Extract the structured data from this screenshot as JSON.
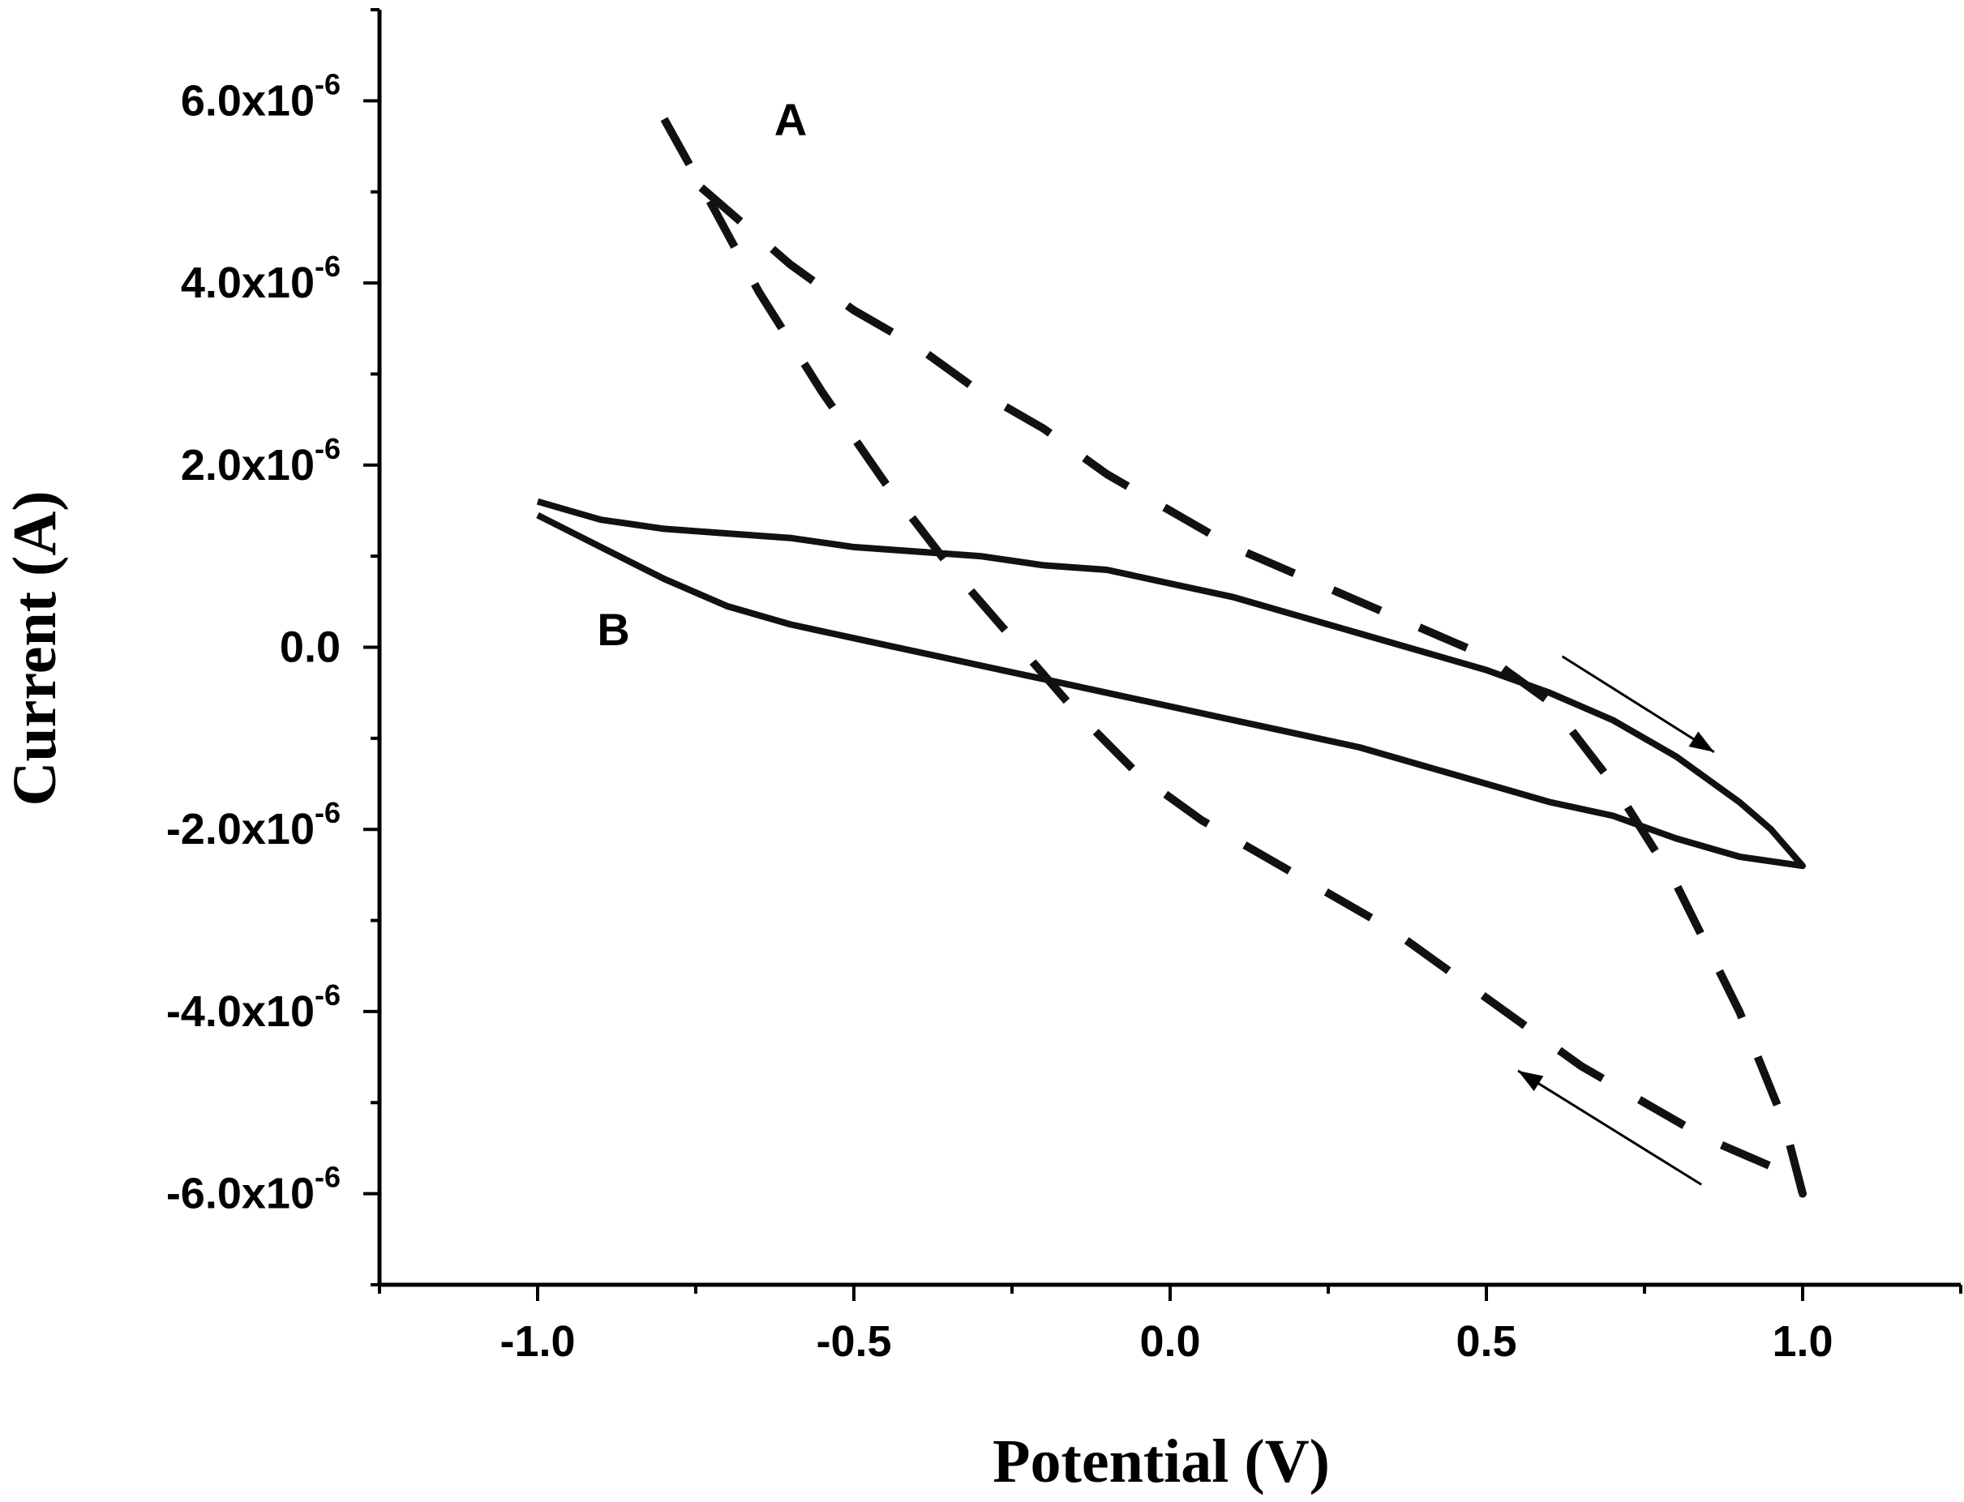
{
  "chart_data": {
    "type": "line",
    "title": "",
    "xlabel": "Potential (V)",
    "ylabel": "Current (A)",
    "xlim": [
      -1.25,
      1.25
    ],
    "ylim": [
      -7e-06,
      7e-06
    ],
    "grid": false,
    "x_ticks": [
      {
        "value": -1.0,
        "label": "-1.0"
      },
      {
        "value": -0.5,
        "label": "-0.5"
      },
      {
        "value": 0.0,
        "label": "0.0"
      },
      {
        "value": 0.5,
        "label": "0.5"
      },
      {
        "value": 1.0,
        "label": "1.0"
      }
    ],
    "y_ticks": [
      {
        "value": 6e-06,
        "mantissa": "6.0x10",
        "exponent": "-6"
      },
      {
        "value": 4e-06,
        "mantissa": "4.0x10",
        "exponent": "-6"
      },
      {
        "value": 2e-06,
        "mantissa": "2.0x10",
        "exponent": "-6"
      },
      {
        "value": 0,
        "mantissa": "0.0",
        "exponent": ""
      },
      {
        "value": -2e-06,
        "mantissa": "-2.0x10",
        "exponent": "-6"
      },
      {
        "value": -4e-06,
        "mantissa": "-4.0x10",
        "exponent": "-6"
      },
      {
        "value": -6e-06,
        "mantissa": "-6.0x10",
        "exponent": "-6"
      }
    ],
    "series": [
      {
        "name": "A",
        "style": "dashed",
        "label_at": {
          "x": -0.6,
          "y": 5.8e-06
        },
        "points": [
          {
            "x": -0.8,
            "y": 5.8e-06
          },
          {
            "x": -0.72,
            "y": 4.8e-06
          },
          {
            "x": -0.65,
            "y": 3.9e-06
          },
          {
            "x": -0.55,
            "y": 2.8e-06
          },
          {
            "x": -0.45,
            "y": 1.8e-06
          },
          {
            "x": -0.35,
            "y": 9e-07
          },
          {
            "x": -0.25,
            "y": 1e-07
          },
          {
            "x": -0.15,
            "y": -7e-07
          },
          {
            "x": -0.05,
            "y": -1.4e-06
          },
          {
            "x": 0.05,
            "y": -1.9e-06
          },
          {
            "x": 0.15,
            "y": -2.3e-06
          },
          {
            "x": 0.25,
            "y": -2.7e-06
          },
          {
            "x": 0.35,
            "y": -3.1e-06
          },
          {
            "x": 0.45,
            "y": -3.6e-06
          },
          {
            "x": 0.55,
            "y": -4.1e-06
          },
          {
            "x": 0.65,
            "y": -4.6e-06
          },
          {
            "x": 0.75,
            "y": -5e-06
          },
          {
            "x": 0.85,
            "y": -5.4e-06
          },
          {
            "x": 0.95,
            "y": -5.7e-06
          },
          {
            "x": 1.0,
            "y": -6e-06
          },
          {
            "x": 0.97,
            "y": -5.2e-06
          },
          {
            "x": 0.9,
            "y": -4e-06
          },
          {
            "x": 0.8,
            "y": -2.6e-06
          },
          {
            "x": 0.7,
            "y": -1.5e-06
          },
          {
            "x": 0.6,
            "y": -6e-07
          },
          {
            "x": 0.5,
            "y": -1e-07
          },
          {
            "x": 0.4,
            "y": 2e-07
          },
          {
            "x": 0.3,
            "y": 5e-07
          },
          {
            "x": 0.2,
            "y": 8e-07
          },
          {
            "x": 0.1,
            "y": 1.1e-06
          },
          {
            "x": 0.0,
            "y": 1.5e-06
          },
          {
            "x": -0.1,
            "y": 1.9e-06
          },
          {
            "x": -0.2,
            "y": 2.4e-06
          },
          {
            "x": -0.3,
            "y": 2.8e-06
          },
          {
            "x": -0.4,
            "y": 3.3e-06
          },
          {
            "x": -0.5,
            "y": 3.7e-06
          },
          {
            "x": -0.6,
            "y": 4.2e-06
          },
          {
            "x": -0.7,
            "y": 4.8e-06
          },
          {
            "x": -0.75,
            "y": 5.1e-06
          }
        ]
      },
      {
        "name": "B",
        "style": "solid",
        "label_at": {
          "x": -0.88,
          "y": 2e-07
        },
        "points": [
          {
            "x": -1.0,
            "y": 1.6e-06
          },
          {
            "x": -0.9,
            "y": 1.4e-06
          },
          {
            "x": -0.8,
            "y": 1.3e-06
          },
          {
            "x": -0.7,
            "y": 1.25e-06
          },
          {
            "x": -0.6,
            "y": 1.2e-06
          },
          {
            "x": -0.5,
            "y": 1.1e-06
          },
          {
            "x": -0.4,
            "y": 1.05e-06
          },
          {
            "x": -0.3,
            "y": 1e-06
          },
          {
            "x": -0.2,
            "y": 9e-07
          },
          {
            "x": -0.1,
            "y": 8.5e-07
          },
          {
            "x": 0.0,
            "y": 7e-07
          },
          {
            "x": 0.1,
            "y": 5.5e-07
          },
          {
            "x": 0.2,
            "y": 3.5e-07
          },
          {
            "x": 0.3,
            "y": 1.5e-07
          },
          {
            "x": 0.4,
            "y": -5e-08
          },
          {
            "x": 0.5,
            "y": -2.5e-07
          },
          {
            "x": 0.6,
            "y": -5e-07
          },
          {
            "x": 0.7,
            "y": -8e-07
          },
          {
            "x": 0.8,
            "y": -1.2e-06
          },
          {
            "x": 0.9,
            "y": -1.7e-06
          },
          {
            "x": 0.95,
            "y": -2e-06
          },
          {
            "x": 1.0,
            "y": -2.4e-06
          },
          {
            "x": 0.9,
            "y": -2.3e-06
          },
          {
            "x": 0.8,
            "y": -2.1e-06
          },
          {
            "x": 0.7,
            "y": -1.85e-06
          },
          {
            "x": 0.6,
            "y": -1.7e-06
          },
          {
            "x": 0.5,
            "y": -1.5e-06
          },
          {
            "x": 0.4,
            "y": -1.3e-06
          },
          {
            "x": 0.3,
            "y": -1.1e-06
          },
          {
            "x": 0.2,
            "y": -9.5e-07
          },
          {
            "x": 0.1,
            "y": -8e-07
          },
          {
            "x": 0.0,
            "y": -6.5e-07
          },
          {
            "x": -0.1,
            "y": -5e-07
          },
          {
            "x": -0.2,
            "y": -3.5e-07
          },
          {
            "x": -0.3,
            "y": -2e-07
          },
          {
            "x": -0.4,
            "y": -5e-08
          },
          {
            "x": -0.5,
            "y": 1e-07
          },
          {
            "x": -0.6,
            "y": 2.5e-07
          },
          {
            "x": -0.7,
            "y": 4.5e-07
          },
          {
            "x": -0.8,
            "y": 7.5e-07
          },
          {
            "x": -0.9,
            "y": 1.1e-06
          },
          {
            "x": -1.0,
            "y": 1.45e-06
          }
        ]
      }
    ],
    "annotations": [
      {
        "type": "arrow",
        "direction": "forward-scan",
        "from": {
          "x": 0.62,
          "y": -1e-07
        },
        "to": {
          "x": 0.86,
          "y": -1.15e-06
        }
      },
      {
        "type": "arrow",
        "direction": "reverse-scan",
        "from": {
          "x": 0.84,
          "y": -5.9e-06
        },
        "to": {
          "x": 0.55,
          "y": -4.65e-06
        }
      }
    ]
  }
}
